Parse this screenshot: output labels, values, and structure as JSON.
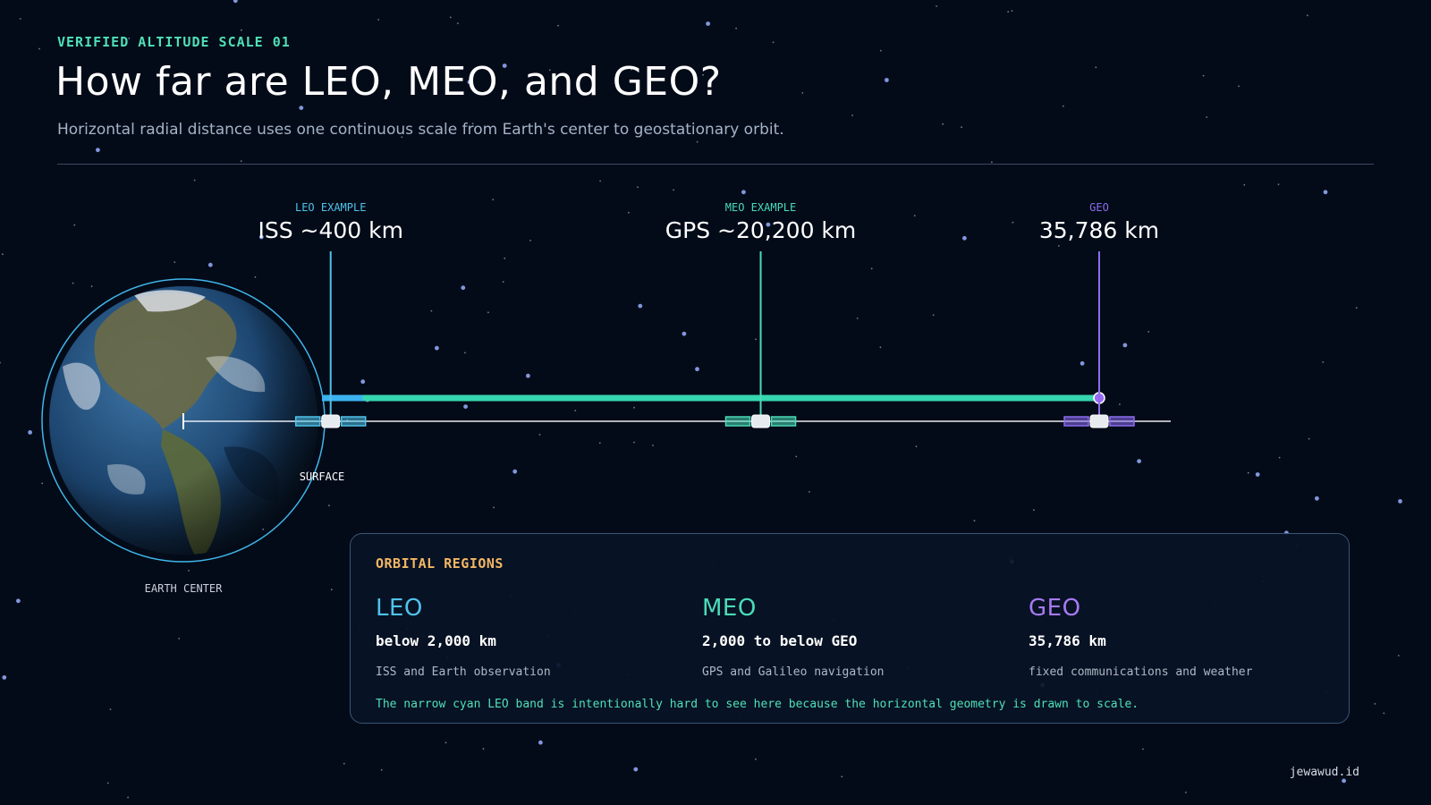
{
  "header": {
    "eyebrow": "VERIFIED ALTITUDE SCALE 01",
    "title": "How far are LEO, MEO, and GEO?",
    "subtitle": "Horizontal radial distance uses one continuous scale from Earth's center to geostationary orbit."
  },
  "scale": {
    "earth_radius_km": 6371,
    "markers": [
      {
        "kicker": "LEO EXAMPLE",
        "value": "ISS ~400 km",
        "altitude_km": 400,
        "color": "#4ec3ea"
      },
      {
        "kicker": "MEO EXAMPLE",
        "value": "GPS ~20,200 km",
        "altitude_km": 20200,
        "color": "#49dcb8"
      },
      {
        "kicker": "GEO",
        "value": "35,786 km",
        "altitude_km": 35786,
        "color": "#8b6cf0"
      }
    ],
    "band_colors": {
      "leo": "#3db2f0",
      "meo": "#36d6ae",
      "geo_dot": "#9a6cf2"
    },
    "surface_label": "SURFACE",
    "center_label": "EARTH CENTER"
  },
  "regions": {
    "title": "ORBITAL REGIONS",
    "items": [
      {
        "name": "LEO",
        "range": "below 2,000 km",
        "use": "ISS and Earth observation",
        "color": "#4ec3ea"
      },
      {
        "name": "MEO",
        "range": "2,000 to below GEO",
        "use": "GPS and Galileo navigation",
        "color": "#49dcb8"
      },
      {
        "name": "GEO",
        "range": "35,786 km",
        "use": "fixed communications and weather",
        "color": "#a77af0"
      }
    ],
    "note": "The narrow cyan LEO band is intentionally hard to see here because the horizontal geometry is drawn to scale."
  },
  "footer": {
    "credit": "jewawud.id"
  }
}
